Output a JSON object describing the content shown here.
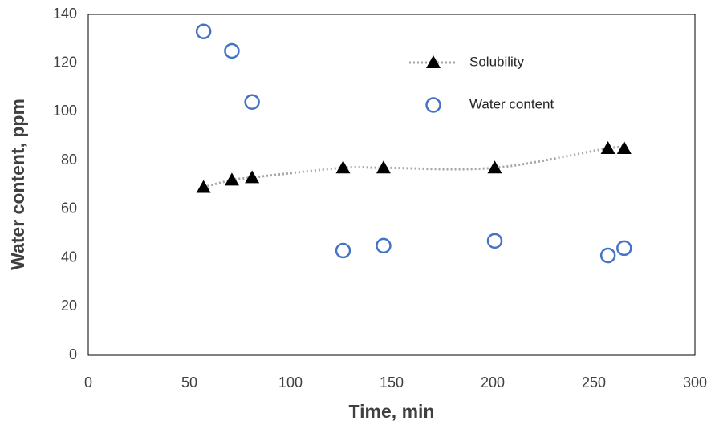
{
  "chart_data": {
    "type": "scatter",
    "x_label": "Time, min",
    "y_label": "Water content, ppm",
    "x": [
      57,
      71,
      81,
      126,
      146,
      201,
      257,
      265
    ],
    "series": [
      {
        "name": "Solubility",
        "color": "#000000",
        "line_color": "#a6a6a6",
        "marker": "triangle",
        "line": "dotted",
        "smooth": true,
        "values": [
          69,
          72,
          73,
          77,
          77,
          77,
          85,
          85
        ]
      },
      {
        "name": "Water content",
        "color": "#4472c4",
        "marker": "circle",
        "line": "none",
        "values": [
          133,
          125,
          104,
          43,
          45,
          47,
          41,
          44
        ]
      }
    ],
    "xlim": [
      0,
      300
    ],
    "xticks": [
      0,
      50,
      100,
      150,
      200,
      250,
      300
    ],
    "ylim": [
      0,
      140
    ],
    "yticks": [
      0,
      20,
      40,
      60,
      80,
      100,
      120,
      140
    ],
    "grid": false,
    "legend": "top-right"
  }
}
